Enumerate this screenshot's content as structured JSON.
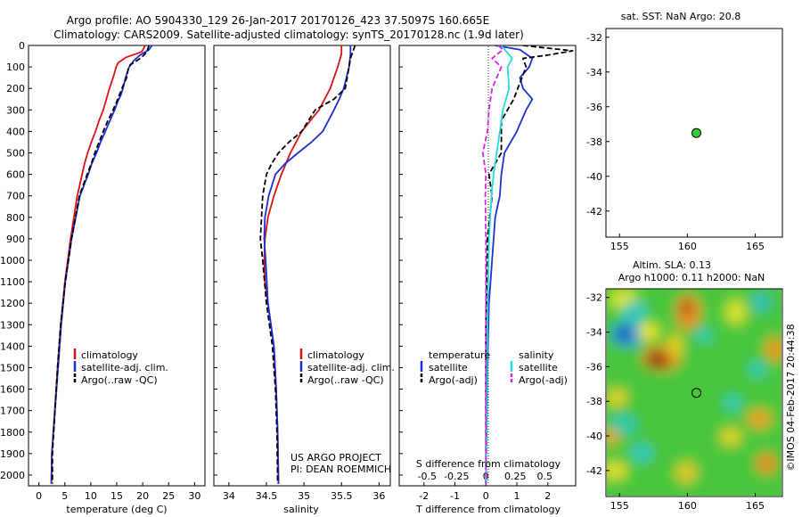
{
  "title": {
    "line1": "Argo profile: AO 5904330_129 26-Jan-2017 20170126_423 37.5097S 160.665E",
    "line2": "Climatology: CARS2009. Satellite-adjusted climatology: synTS_20170128.nc (1.9d later)"
  },
  "colors": {
    "climatology": "#dd1111",
    "satellite": "#1a2fd6",
    "argo": "#000000",
    "salinity_satellite": "#22dddd",
    "salinity_argo": "#dd22dd"
  },
  "chart_data": [
    {
      "type": "line",
      "panel": "temperature",
      "xlabel": "temperature (deg C)",
      "xticks": [
        "0",
        "5",
        "10",
        "15",
        "20",
        "25",
        "30"
      ],
      "xlim": [
        -2,
        32
      ],
      "ylim": [
        2050,
        0
      ],
      "yticks": [
        "0",
        "100",
        "200",
        "300",
        "400",
        "500",
        "600",
        "700",
        "800",
        "900",
        "1000",
        "1100",
        "1200",
        "1300",
        "1400",
        "1500",
        "1600",
        "1700",
        "1800",
        "1900",
        "2000"
      ],
      "legend": [
        "climatology",
        "satellite-adj. clim.",
        "Argo(..raw -QC)"
      ],
      "series": [
        {
          "name": "climatology",
          "style": "solid",
          "color": "#dd1111",
          "x": [
            20.5,
            19.8,
            16.8,
            15.3,
            14.9,
            14.3,
            13.6,
            13.0,
            12.4,
            11.6,
            10.9,
            10.1,
            9.4,
            8.8,
            7.4,
            6.1,
            5.0,
            4.2,
            3.6,
            2.5,
            2.4
          ],
          "y": [
            0,
            30,
            55,
            80,
            100,
            150,
            200,
            250,
            300,
            350,
            400,
            450,
            500,
            550,
            700,
            900,
            1100,
            1300,
            1500,
            1900,
            2040
          ]
        },
        {
          "name": "satellite-adj. clim.",
          "style": "solid",
          "color": "#1a2fd6",
          "x": [
            21.8,
            21.2,
            19.5,
            18.3,
            17.4,
            16.7,
            16.2,
            15.8,
            15.2,
            14.6,
            13.7,
            12.8,
            11.9,
            11.1,
            10.2,
            9.5,
            7.9,
            6.3,
            5.1,
            4.3,
            3.7,
            2.5,
            2.4
          ],
          "y": [
            0,
            20,
            45,
            70,
            100,
            150,
            200,
            230,
            260,
            300,
            350,
            400,
            450,
            500,
            550,
            600,
            700,
            900,
            1100,
            1300,
            1500,
            1900,
            2040
          ]
        },
        {
          "name": "Argo(..raw -QC)",
          "style": "dashed",
          "color": "#000000",
          "x": [
            21.2,
            20.8,
            19.8,
            18.6,
            17.6,
            17.2,
            16.9,
            16.0,
            15.2,
            14.3,
            13.3,
            12.4,
            11.6,
            10.8,
            10.1,
            9.3,
            7.8,
            6.3,
            5.1,
            4.2,
            3.6,
            2.6,
            2.6
          ],
          "y": [
            0,
            30,
            55,
            75,
            90,
            110,
            150,
            200,
            250,
            300,
            350,
            400,
            450,
            500,
            550,
            600,
            700,
            900,
            1100,
            1300,
            1500,
            1900,
            2040
          ]
        }
      ]
    },
    {
      "type": "line",
      "panel": "salinity",
      "xlabel": "salinity",
      "xticks": [
        "34",
        "34.5",
        "35",
        "35.5",
        "36"
      ],
      "xlim": [
        33.8,
        36.15
      ],
      "ylim": [
        2050,
        0
      ],
      "legend": [
        "climatology",
        "satellite-adj. clim.",
        "Argo(..raw -QC)"
      ],
      "annotations": [
        "US ARGO PROJECT",
        "PI: DEAN ROEMMICH"
      ],
      "series": [
        {
          "name": "climatology",
          "style": "solid",
          "color": "#dd1111",
          "x": [
            35.5,
            35.5,
            35.45,
            35.35,
            35.2,
            34.97,
            34.82,
            34.7,
            34.6,
            34.52,
            34.48,
            34.47,
            34.48,
            34.52,
            34.6,
            34.63,
            34.65,
            34.66
          ],
          "y": [
            0,
            40,
            100,
            200,
            300,
            400,
            500,
            600,
            700,
            800,
            900,
            1000,
            1100,
            1200,
            1400,
            1600,
            1800,
            2040
          ]
        },
        {
          "name": "satellite-adj. clim.",
          "style": "solid",
          "color": "#1a2fd6",
          "x": [
            35.62,
            35.62,
            35.6,
            35.53,
            35.47,
            35.4,
            35.25,
            35.1,
            34.92,
            34.75,
            34.62,
            34.53,
            34.48,
            34.47,
            34.49,
            34.52,
            34.6,
            34.63,
            34.65,
            34.66
          ],
          "y": [
            0,
            40,
            100,
            200,
            250,
            300,
            400,
            450,
            500,
            550,
            600,
            700,
            800,
            900,
            1000,
            1200,
            1400,
            1600,
            1800,
            2040
          ]
        },
        {
          "name": "Argo(..raw -QC)",
          "style": "dashed",
          "color": "#000000",
          "x": [
            35.68,
            35.64,
            35.62,
            35.6,
            35.55,
            35.4,
            35.15,
            34.97,
            34.8,
            34.66,
            34.57,
            34.5,
            34.45,
            34.42,
            34.45,
            34.5,
            34.58,
            34.62,
            34.64,
            34.65
          ],
          "y": [
            0,
            40,
            60,
            100,
            200,
            250,
            300,
            400,
            450,
            500,
            550,
            600,
            700,
            900,
            1000,
            1200,
            1400,
            1600,
            1800,
            2040
          ]
        }
      ]
    },
    {
      "type": "line",
      "panel": "difference",
      "xlabel": "T difference from climatology",
      "xlabel_top": "S difference from climatology",
      "xticks": [
        "-2",
        "-1",
        "0",
        "1",
        "2"
      ],
      "xticks_top": [
        "-0.5",
        "-0.25",
        "0",
        "0.25",
        "0.5"
      ],
      "xlim": [
        -2.8,
        2.9
      ],
      "ylim": [
        2050,
        0
      ],
      "legend_groups": [
        {
          "title": "temperature",
          "items": [
            "satellite",
            "Argo(-adj)"
          ]
        },
        {
          "title": "salinity",
          "items": [
            "satellite",
            "Argo(-adj)"
          ]
        }
      ],
      "series": [
        {
          "name": "temperature satellite",
          "style": "solid",
          "color": "#1a2fd6",
          "x": [
            0.3,
            1.1,
            1.5,
            1.4,
            1.1,
            1.2,
            1.5,
            1.3,
            1.0,
            0.6,
            0.5,
            0.45,
            0.3,
            0.2,
            0.1,
            0.05,
            0
          ],
          "y": [
            0,
            20,
            60,
            100,
            150,
            200,
            250,
            300,
            400,
            500,
            600,
            700,
            800,
            1000,
            1200,
            1500,
            2040
          ]
        },
        {
          "name": "temperature Argo(-adj)",
          "style": "dashed",
          "color": "#000000",
          "x": [
            1.2,
            2.8,
            2.0,
            1.2,
            1.3,
            0.9,
            0.5,
            0.5,
            0.1,
            0.2,
            0.05,
            0,
            0
          ],
          "y": [
            0,
            25,
            45,
            60,
            100,
            250,
            350,
            500,
            600,
            700,
            900,
            1300,
            2040
          ]
        },
        {
          "name": "salinity satellite",
          "style": "solid",
          "color": "#22dddd",
          "x": [
            0.5,
            0.85,
            0.7,
            0.75,
            0.55,
            0.35,
            0.25,
            0.18,
            0.1,
            0.05,
            0
          ],
          "y": [
            0,
            60,
            100,
            200,
            300,
            500,
            600,
            700,
            900,
            1300,
            2040
          ]
        },
        {
          "name": "salinity Argo(-adj)",
          "style": "dashed",
          "color": "#dd22dd",
          "x": [
            0.4,
            0.55,
            0.2,
            0.5,
            0.2,
            0.1,
            0.05,
            -0.1,
            0,
            -0.02,
            0,
            0
          ],
          "y": [
            0,
            20,
            60,
            100,
            200,
            300,
            400,
            500,
            600,
            700,
            900,
            2040
          ]
        }
      ]
    },
    {
      "type": "scatter",
      "panel": "sst-map",
      "title": "sat. SST: NaN Argo: 20.8",
      "xticks": [
        "155",
        "160",
        "165"
      ],
      "yticks": [
        "-32",
        "-34",
        "-36",
        "-38",
        "-40",
        "-42"
      ],
      "xlim": [
        154,
        167
      ],
      "ylim": [
        -43.5,
        -31.5
      ],
      "points": [
        {
          "x": 160.665,
          "y": -37.5097
        }
      ]
    },
    {
      "type": "heatmap",
      "panel": "sla-map",
      "title": "Altim. SLA: 0.13",
      "subtitle": "Argo h1000: 0.11 h2000: NaN",
      "xticks": [
        "155",
        "160",
        "165"
      ],
      "yticks": [
        "-32",
        "-34",
        "-36",
        "-38",
        "-40",
        "-42"
      ],
      "xlim": [
        154,
        167
      ],
      "ylim": [
        -43.5,
        -31.5
      ],
      "points": [
        {
          "x": 160.665,
          "y": -37.5097
        }
      ]
    }
  ],
  "credit": "©IMOS 04-Feb-2017 20:44:38"
}
